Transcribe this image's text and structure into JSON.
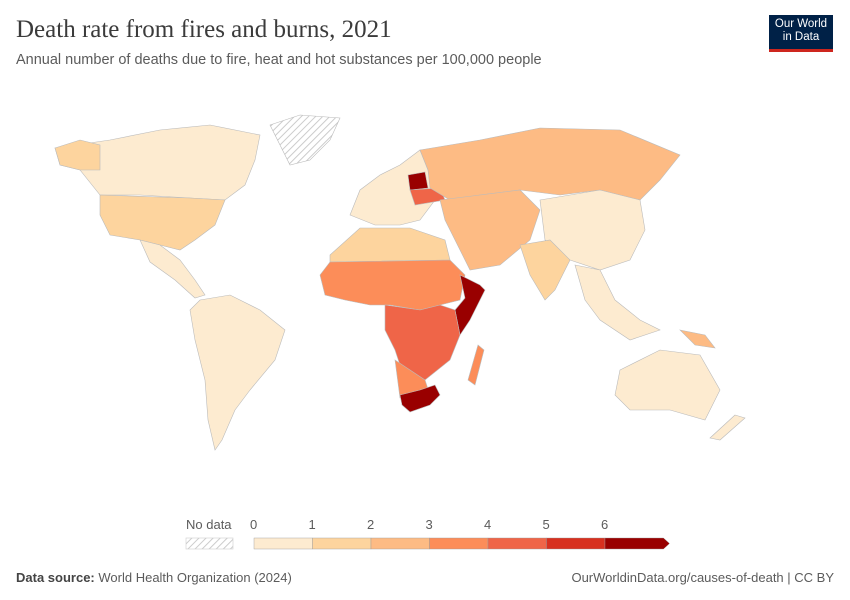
{
  "header": {
    "title": "Death rate from fires and burns, 2021",
    "subtitle": "Annual number of deaths due to fire, heat and hot substances per 100,000 people"
  },
  "logo": {
    "line1": "Our World",
    "line2": "in Data",
    "bg": "#002147",
    "accent": "#ce261e"
  },
  "legend": {
    "no_data_label": "No data",
    "ticks": [
      "0",
      "1",
      "2",
      "3",
      "4",
      "5",
      "6"
    ],
    "bins": [
      {
        "from": 0,
        "to": 1,
        "color": "#fdebd0"
      },
      {
        "from": 1,
        "to": 2,
        "color": "#fdd49e"
      },
      {
        "from": 2,
        "to": 3,
        "color": "#fdbb84"
      },
      {
        "from": 3,
        "to": 4,
        "color": "#fc8d59"
      },
      {
        "from": 4,
        "to": 5,
        "color": "#ef6548"
      },
      {
        "from": 5,
        "to": 6,
        "color": "#d7301f"
      },
      {
        "from": 6,
        "to": null,
        "color": "#990000"
      }
    ]
  },
  "footer": {
    "source_label": "Data source:",
    "source": "World Health Organization (2024)",
    "url": "OurWorldinData.org/causes-of-death | CC BY"
  }
}
